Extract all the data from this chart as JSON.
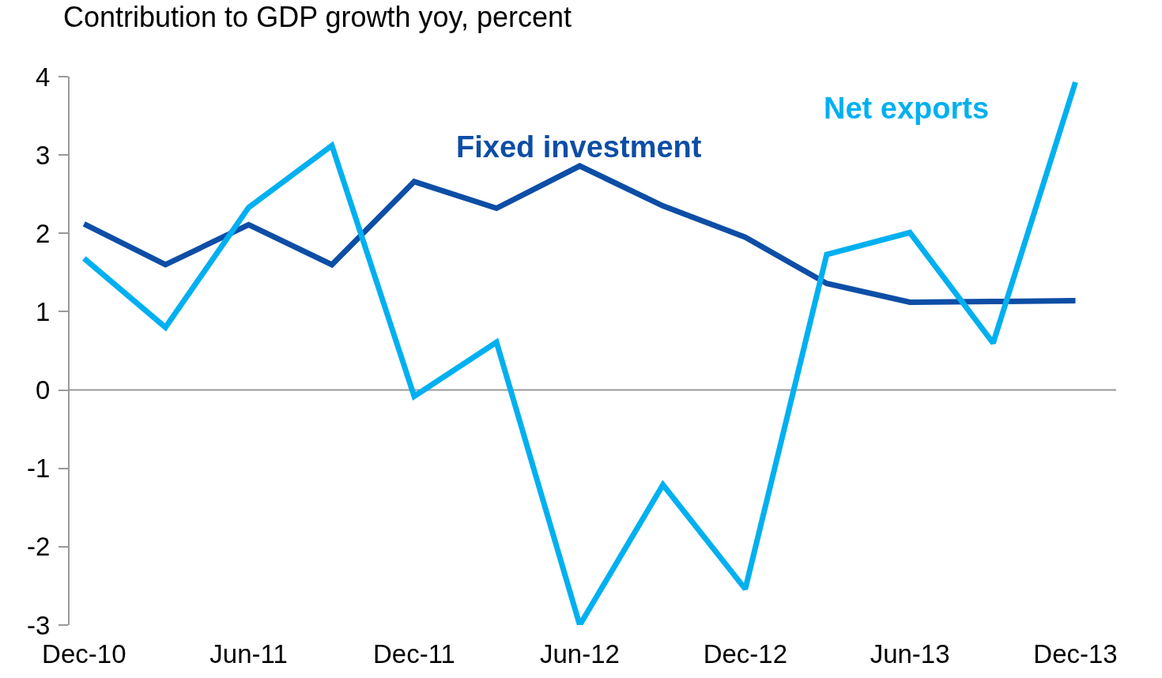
{
  "chart_data": {
    "type": "line",
    "title": "Contribution to GDP growth yoy, percent",
    "x": [
      "2010-12",
      "2011-03",
      "2011-06",
      "2011-09",
      "2011-12",
      "2012-03",
      "2012-06",
      "2012-09",
      "2012-12",
      "2013-03",
      "2013-06",
      "2013-09",
      "2013-12"
    ],
    "series": [
      {
        "name": "Fixed investment",
        "color": "#0d4ea6",
        "values": [
          2.12,
          1.6,
          2.11,
          1.6,
          2.66,
          2.32,
          2.86,
          2.35,
          1.95,
          1.36,
          1.12,
          1.13,
          1.14
        ]
      },
      {
        "name": "Net exports",
        "color": "#00b0f0",
        "values": [
          1.68,
          0.8,
          2.33,
          3.12,
          -0.08,
          0.61,
          -3.0,
          -1.21,
          -2.54,
          1.73,
          2.01,
          0.6,
          3.93
        ]
      }
    ],
    "xlim": [
      "2010-11-15",
      "2014-01-15"
    ],
    "xticks": [
      {
        "value": "2010-12",
        "label": "Dec-10"
      },
      {
        "value": "2011-06",
        "label": "Jun-11"
      },
      {
        "value": "2011-12",
        "label": "Dec-11"
      },
      {
        "value": "2012-06",
        "label": "Jun-12"
      },
      {
        "value": "2012-12",
        "label": "Dec-12"
      },
      {
        "value": "2013-06",
        "label": "Jun-13"
      },
      {
        "value": "2013-12",
        "label": "Dec-13"
      }
    ],
    "ylim": [
      -3,
      4
    ],
    "yticks": [
      -3,
      -2,
      -1,
      0,
      1,
      2,
      3,
      4
    ],
    "ref_lines": [
      {
        "axis": "y",
        "value": 0,
        "color": "#999999",
        "line_style": "solid"
      }
    ],
    "grid": false,
    "legend": false,
    "marker": "none",
    "line_style": "solid"
  }
}
